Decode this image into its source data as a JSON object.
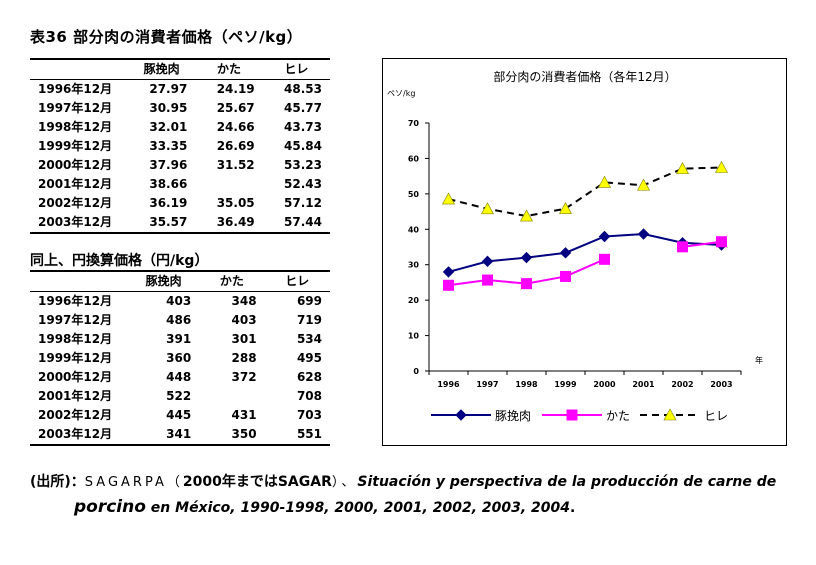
{
  "table1": {
    "title": "表36 部分肉の消費者価格（ペソ/kg）",
    "headers": [
      "",
      "豚挽肉",
      "かた",
      "ヒレ"
    ],
    "rows": [
      [
        "1996年12月",
        "27.97",
        "24.19",
        "48.53"
      ],
      [
        "1997年12月",
        "30.95",
        "25.67",
        "45.77"
      ],
      [
        "1998年12月",
        "32.01",
        "24.66",
        "43.73"
      ],
      [
        "1999年12月",
        "33.35",
        "26.69",
        "45.84"
      ],
      [
        "2000年12月",
        "37.96",
        "31.52",
        "53.23"
      ],
      [
        "2001年12月",
        "38.66",
        "",
        "52.43"
      ],
      [
        "2002年12月",
        "36.19",
        "35.05",
        "57.12"
      ],
      [
        "2003年12月",
        "35.57",
        "36.49",
        "57.44"
      ]
    ]
  },
  "table2": {
    "title": "同上、円換算価格（円/kg）",
    "headers": [
      "",
      "豚挽肉",
      "かた",
      "ヒレ"
    ],
    "rows": [
      [
        "1996年12月",
        "403",
        "348",
        "699"
      ],
      [
        "1997年12月",
        "486",
        "403",
        "719"
      ],
      [
        "1998年12月",
        "391",
        "301",
        "534"
      ],
      [
        "1999年12月",
        "360",
        "288",
        "495"
      ],
      [
        "2000年12月",
        "448",
        "372",
        "628"
      ],
      [
        "2001年12月",
        "522",
        "",
        "708"
      ],
      [
        "2002年12月",
        "445",
        "431",
        "703"
      ],
      [
        "2003年12月",
        "341",
        "350",
        "551"
      ]
    ]
  },
  "chart_data": {
    "type": "line",
    "title": "部分肉の消費者価格（各年12月）",
    "ylabel": "ペソ/kg",
    "xlabel": "年",
    "categories": [
      "1996",
      "1997",
      "1998",
      "1999",
      "2000",
      "2001",
      "2002",
      "2003"
    ],
    "ylim": [
      0,
      70
    ],
    "yticks": [
      0,
      10,
      20,
      30,
      40,
      50,
      60,
      70
    ],
    "grid": false,
    "legend": "bottom",
    "series": [
      {
        "name": "豚挽肉",
        "values": [
          27.97,
          30.95,
          32.01,
          33.35,
          37.96,
          38.66,
          36.19,
          35.57
        ],
        "color": "#000080",
        "marker": "diamond",
        "dash": "solid"
      },
      {
        "name": "かた",
        "values": [
          24.19,
          25.67,
          24.66,
          26.69,
          31.52,
          null,
          35.05,
          36.49
        ],
        "color": "#ff00ff",
        "marker": "square",
        "dash": "solid"
      },
      {
        "name": "ヒレ",
        "values": [
          48.53,
          45.77,
          43.73,
          45.84,
          53.23,
          52.43,
          57.12,
          57.44
        ],
        "color": "#000000",
        "marker": "triangle",
        "markerColor": "#ffff00",
        "dash": "dashed"
      }
    ]
  },
  "source": {
    "prefix": "(出所)：",
    "org": "SAGARPA（",
    "org_note": "2000年まではSAGAR",
    "org_close": "）、",
    "title_part1": "Situación y perspectiva de la producción de carne de",
    "title_big": "porcino",
    "title_part2": " en México, 1990-1998, 2000, 2001, 2002, 2003, 2004",
    "end": "."
  }
}
